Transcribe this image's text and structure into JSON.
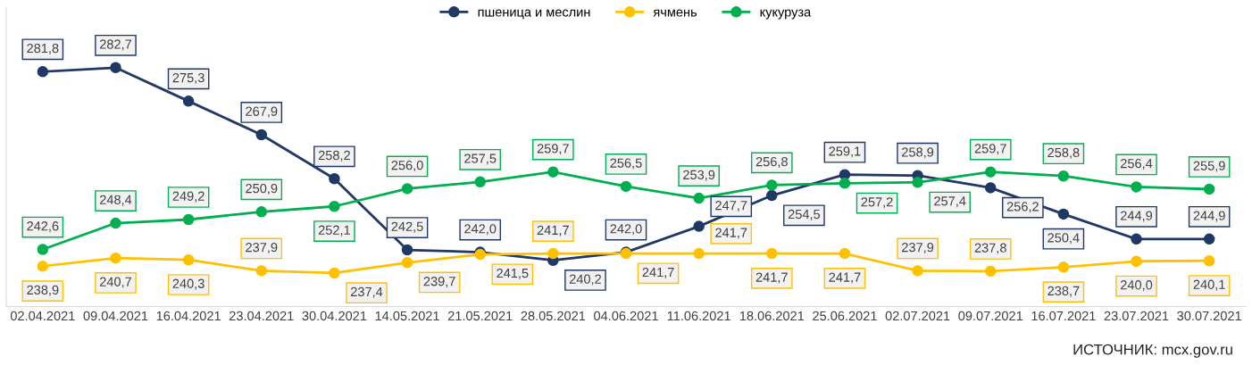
{
  "chart_data": {
    "type": "line",
    "categories": [
      "02.04.2021",
      "09.04.2021",
      "16.04.2021",
      "23.04.2021",
      "30.04.2021",
      "14.05.2021",
      "21.05.2021",
      "28.05.2021",
      "04.06.2021",
      "11.06.2021",
      "18.06.2021",
      "25.06.2021",
      "02.07.2021",
      "09.07.2021",
      "16.07.2021",
      "23.07.2021",
      "30.07.2021"
    ],
    "series": [
      {
        "name": "пшеница и меслин",
        "color": "#1f3864",
        "values": [
          281.8,
          282.7,
          275.3,
          267.9,
          258.2,
          242.5,
          242.0,
          240.2,
          242.0,
          247.7,
          254.5,
          259.1,
          258.9,
          256.2,
          250.4,
          244.9,
          244.9
        ],
        "value_labels": [
          "281,8",
          "282,7",
          "275,3",
          "267,9",
          "258,2",
          "242,5",
          "242,0",
          "240,2",
          "242,0",
          "247,7",
          "254,5",
          "259,1",
          "258,9",
          "256,2",
          "250,4",
          "244,9",
          "244,9"
        ]
      },
      {
        "name": "ячмень",
        "color": "#ffc000",
        "values": [
          238.9,
          240.7,
          240.3,
          237.9,
          237.4,
          239.7,
          241.5,
          241.7,
          241.7,
          241.7,
          241.7,
          241.7,
          237.9,
          237.8,
          238.7,
          240.0,
          240.1
        ],
        "value_labels": [
          "238,9",
          "240,7",
          "240,3",
          "237,9",
          "237,4",
          "239,7",
          "241,5",
          "241,7",
          "241,7",
          "241,7",
          "241,7",
          "241,7",
          "237,9",
          "237,8",
          "238,7",
          "240,0",
          "240,1"
        ]
      },
      {
        "name": "кукуруза",
        "color": "#00b050",
        "values": [
          242.6,
          248.4,
          249.2,
          250.9,
          252.1,
          256.0,
          257.5,
          259.7,
          256.5,
          253.9,
          256.8,
          257.2,
          257.4,
          259.7,
          258.8,
          256.4,
          255.9
        ],
        "value_labels": [
          "242,6",
          "248,4",
          "249,2",
          "250,9",
          "252,1",
          "256,0",
          "257,5",
          "259,7",
          "256,5",
          "253,9",
          "256,8",
          "257,2",
          "257,4",
          "259,7",
          "258,8",
          "256,4",
          "255,9"
        ]
      }
    ],
    "ylim": [
      230,
      296
    ],
    "tick_labels": "x",
    "legend": "top",
    "marker": "circle",
    "line_style": "solid",
    "grid": false,
    "annotations": [
      "ИСТОЧНИК: mcx.gov.ru"
    ]
  }
}
